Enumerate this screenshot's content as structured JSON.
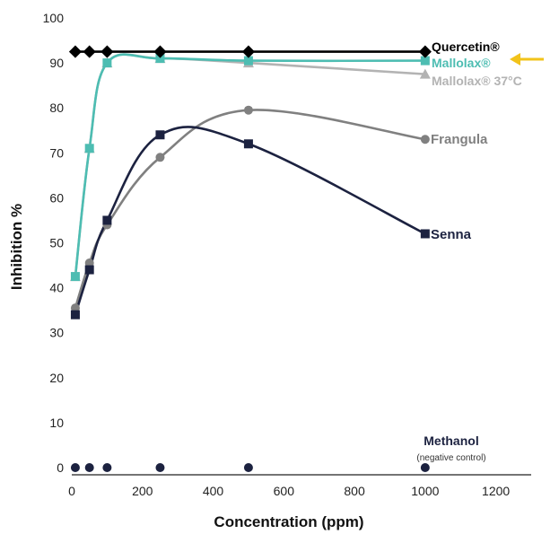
{
  "chart_data": {
    "type": "line",
    "xlabel": "Concentration (ppm)",
    "ylabel": "Inhibition %",
    "xlim": [
      0,
      1300
    ],
    "ylim": [
      0,
      100
    ],
    "x_ticks": [
      0,
      200,
      400,
      600,
      800,
      1000,
      1200
    ],
    "y_ticks": [
      0,
      10,
      20,
      30,
      40,
      50,
      60,
      70,
      80,
      90,
      100
    ],
    "series": [
      {
        "name": "Quercetin®",
        "color": "#000000",
        "marker": "diamond",
        "x": [
          10,
          50,
          100,
          250,
          500,
          1000
        ],
        "y": [
          92.5,
          92.5,
          92.5,
          92.5,
          92.5,
          92.5
        ]
      },
      {
        "name": "Mallolax®",
        "color": "#4dbdb2",
        "marker": "square",
        "x": [
          10,
          50,
          100,
          250,
          500,
          1000
        ],
        "y": [
          42.5,
          71,
          90,
          91,
          90.5,
          90.5
        ]
      },
      {
        "name": "Mallolax® 37°C",
        "color": "#b3b3b3",
        "marker": "triangle",
        "x": [
          10,
          50,
          100,
          250,
          500,
          1000
        ],
        "y": [
          42.5,
          71,
          90,
          91,
          90,
          87.5
        ]
      },
      {
        "name": "Frangula",
        "color": "#808080",
        "marker": "circle",
        "x": [
          10,
          50,
          100,
          250,
          500,
          1000
        ],
        "y": [
          35.5,
          45.5,
          54,
          69,
          79.5,
          73
        ]
      },
      {
        "name": "Senna",
        "color": "#1c2240",
        "marker": "square",
        "x": [
          10,
          50,
          100,
          250,
          500,
          1000
        ],
        "y": [
          34,
          44,
          55,
          74,
          72,
          52
        ]
      },
      {
        "name": "Methanol",
        "note": "(negative control)",
        "color": "#1c2240",
        "marker": "circle",
        "x": [
          10,
          50,
          100,
          250,
          500,
          1000
        ],
        "y": [
          0,
          0,
          0,
          0,
          0,
          0
        ]
      }
    ],
    "highlight_arrow": {
      "target": "Mallolax®",
      "color": "#f2c31a"
    },
    "grid": false
  }
}
